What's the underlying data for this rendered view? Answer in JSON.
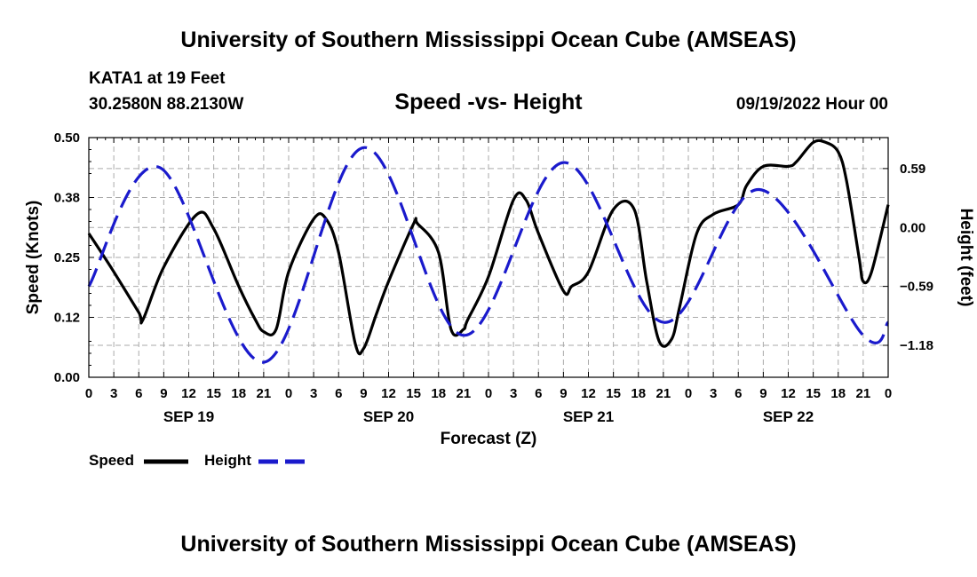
{
  "header": {
    "title": "University of Southern Mississippi Ocean Cube (AMSEAS)",
    "station": "KATA1 at 19 Feet",
    "coords": "30.2580N  88.2130W",
    "subtitle": "Speed -vs- Height",
    "datetime": "09/19/2022 Hour 00"
  },
  "footer": {
    "title": "University of Southern Mississippi Ocean Cube (AMSEAS)"
  },
  "colors": {
    "speed": "#000000",
    "height": "#1a1acc",
    "grid": "#aaaaaa"
  },
  "chart_data": {
    "type": "line",
    "title": "Speed -vs- Height",
    "xlabel": "Forecast (Z)",
    "ylabel": "Speed (Knots)",
    "y2label": "Height (feet)",
    "xlim": [
      0,
      96
    ],
    "ylim": [
      0,
      0.5
    ],
    "y2lim": [
      -1.5,
      0.9
    ],
    "x_ticks": [
      0,
      3,
      6,
      9,
      12,
      15,
      18,
      21,
      24,
      27,
      30,
      33,
      36,
      39,
      42,
      45,
      48,
      51,
      54,
      57,
      60,
      63,
      66,
      69,
      72,
      75,
      78,
      81,
      84,
      87,
      90,
      93,
      96
    ],
    "x_tick_labels": [
      "0",
      "3",
      "6",
      "9",
      "12",
      "15",
      "18",
      "21",
      "0",
      "3",
      "6",
      "9",
      "12",
      "15",
      "18",
      "21",
      "0",
      "3",
      "6",
      "9",
      "12",
      "15",
      "18",
      "21",
      "0",
      "3",
      "6",
      "9",
      "12",
      "15",
      "18",
      "21",
      "0"
    ],
    "day_labels": [
      {
        "x": 12,
        "label": "SEP 19"
      },
      {
        "x": 36,
        "label": "SEP 20"
      },
      {
        "x": 60,
        "label": "SEP 21"
      },
      {
        "x": 84,
        "label": "SEP 22"
      }
    ],
    "y_ticks": [
      0.0,
      0.125,
      0.25,
      0.375,
      0.5
    ],
    "y_tick_labels": [
      "0.00",
      "0.12",
      "0.25",
      "0.38",
      "0.50"
    ],
    "y2_ticks": [
      0.59,
      0.0,
      -0.59,
      -1.18
    ],
    "y2_tick_labels": [
      "0.59",
      "0.00",
      "−0.59",
      "−1.18"
    ],
    "legend": [
      {
        "name": "Speed",
        "style": "solid"
      },
      {
        "name": "Height",
        "style": "dashed"
      }
    ],
    "series": [
      {
        "name": "Speed",
        "axis": "left",
        "style": "solid",
        "x": [
          0,
          3,
          6,
          6.5,
          9,
          13,
          15,
          18,
          20,
          21,
          22.5,
          24,
          27,
          28.5,
          30,
          32,
          33,
          34.5,
          36,
          39,
          39.5,
          42,
          43.5,
          45,
          45.5,
          48,
          51,
          52.5,
          54,
          57,
          58,
          60,
          63,
          65.5,
          67,
          68.5,
          70,
          71,
          73,
          75,
          78,
          79,
          81,
          84,
          85,
          87,
          88.5,
          90,
          91,
          92.5,
          93,
          94,
          96
        ],
        "values": [
          0.3,
          0.22,
          0.135,
          0.12,
          0.23,
          0.34,
          0.31,
          0.19,
          0.12,
          0.095,
          0.1,
          0.22,
          0.33,
          0.33,
          0.26,
          0.07,
          0.06,
          0.13,
          0.2,
          0.32,
          0.32,
          0.26,
          0.1,
          0.1,
          0.12,
          0.21,
          0.37,
          0.37,
          0.3,
          0.18,
          0.19,
          0.22,
          0.35,
          0.35,
          0.2,
          0.075,
          0.08,
          0.15,
          0.3,
          0.34,
          0.36,
          0.4,
          0.44,
          0.44,
          0.45,
          0.49,
          0.49,
          0.47,
          0.41,
          0.25,
          0.2,
          0.22,
          0.36
        ]
      },
      {
        "name": "Height",
        "axis": "right",
        "style": "dashed",
        "x": [
          0,
          8.5,
          21,
          33,
          45,
          57,
          69,
          80.5,
          93,
          96
        ],
        "values": [
          -0.59,
          0.6,
          -1.35,
          0.8,
          -1.08,
          0.65,
          -0.95,
          0.38,
          -1.08,
          -0.95
        ]
      }
    ]
  }
}
